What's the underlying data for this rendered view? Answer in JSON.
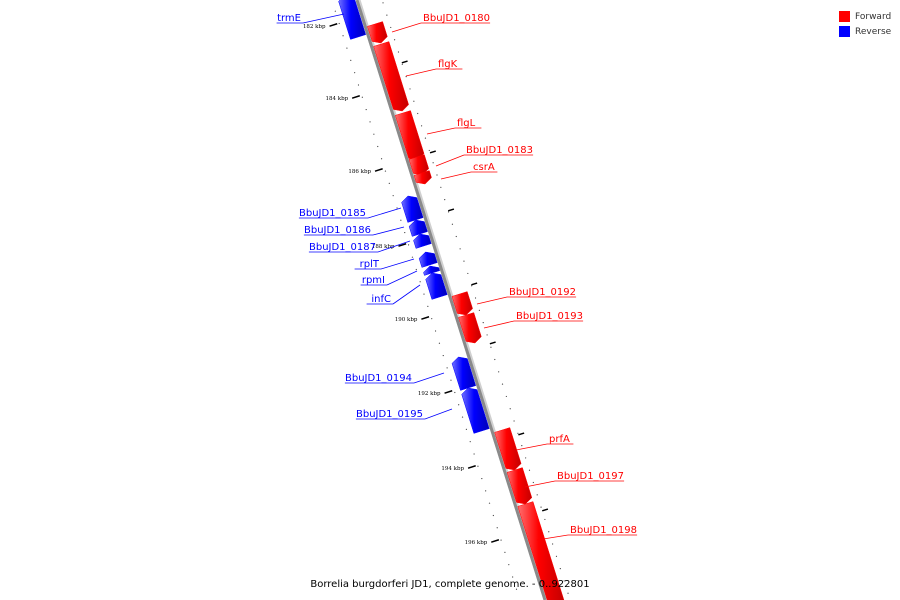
{
  "legend": {
    "forward": {
      "label": "Forward",
      "color": "#ff0000"
    },
    "reverse": {
      "label": "Reverse",
      "color": "#0000ff"
    }
  },
  "caption": "Borrelia burgdorferi JD1, complete genome. - 0..922801",
  "axis": {
    "tick_labels": [
      "182 kbp",
      "184 kbp",
      "186 kbp",
      "188 kbp",
      "190 kbp",
      "192 kbp",
      "194 kbp",
      "196 kbp"
    ]
  },
  "genes": [
    {
      "name": "trmE",
      "strand": "reverse"
    },
    {
      "name": "BbuJD1_0180",
      "strand": "forward"
    },
    {
      "name": "flgK",
      "strand": "forward"
    },
    {
      "name": "flgL",
      "strand": "forward"
    },
    {
      "name": "BbuJD1_0183",
      "strand": "forward"
    },
    {
      "name": "csrA",
      "strand": "forward"
    },
    {
      "name": "BbuJD1_0185",
      "strand": "reverse"
    },
    {
      "name": "BbuJD1_0186",
      "strand": "reverse"
    },
    {
      "name": "BbuJD1_0187",
      "strand": "reverse"
    },
    {
      "name": "rplT",
      "strand": "reverse"
    },
    {
      "name": "rpmI",
      "strand": "reverse"
    },
    {
      "name": "infC",
      "strand": "reverse"
    },
    {
      "name": "BbuJD1_0192",
      "strand": "forward"
    },
    {
      "name": "BbuJD1_0193",
      "strand": "forward"
    },
    {
      "name": "BbuJD1_0194",
      "strand": "reverse"
    },
    {
      "name": "BbuJD1_0195",
      "strand": "reverse"
    },
    {
      "name": "prfA",
      "strand": "forward"
    },
    {
      "name": "BbuJD1_0197",
      "strand": "forward"
    },
    {
      "name": "BbuJD1_0198",
      "strand": "forward"
    }
  ]
}
